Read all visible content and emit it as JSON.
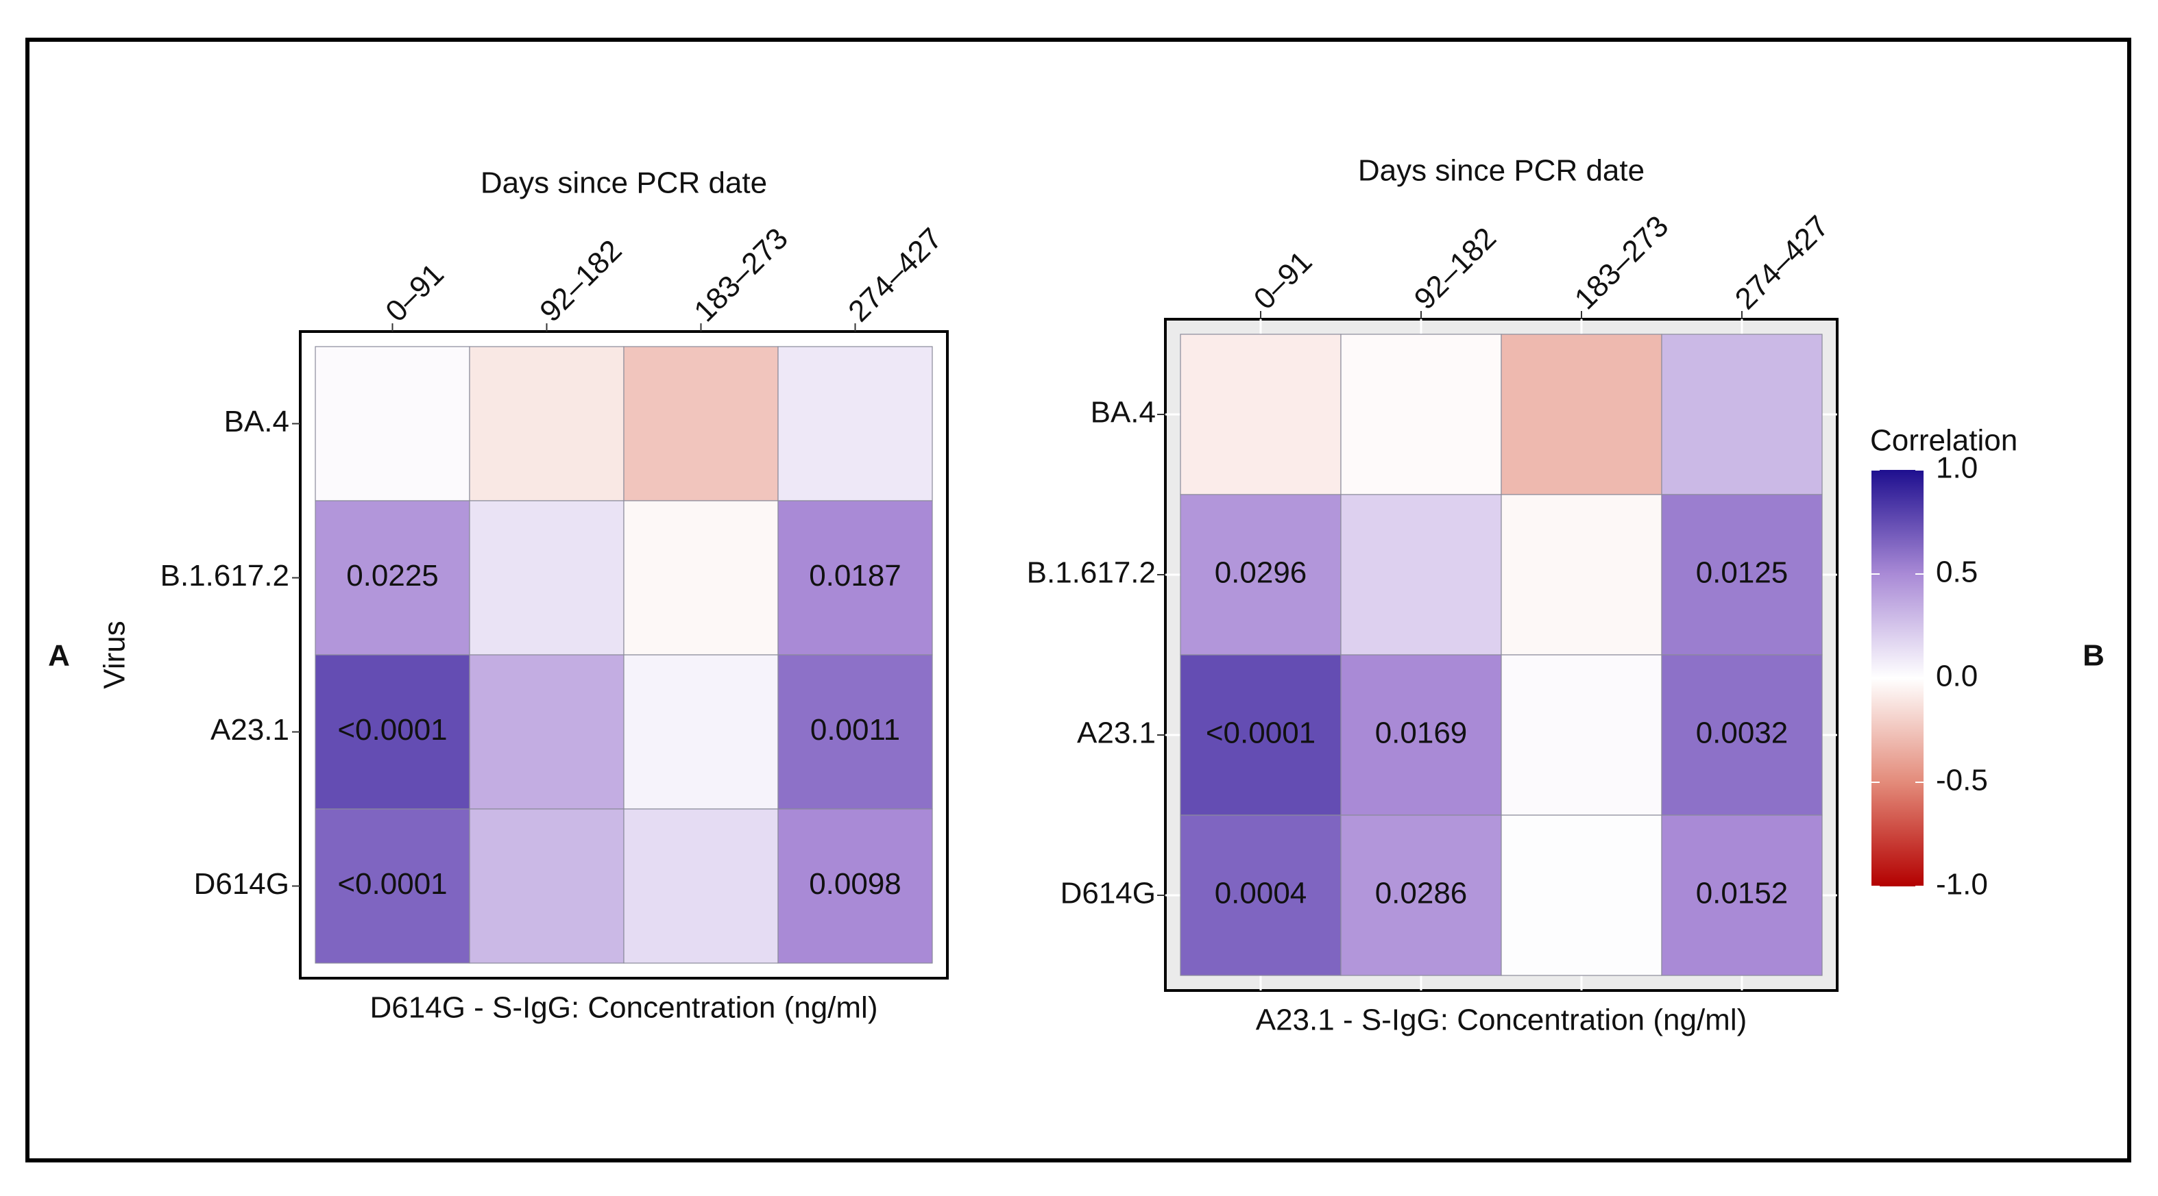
{
  "chart_data": [
    {
      "type": "heatmap",
      "panel_label": "A",
      "title": "Days since PCR date",
      "x_label": "D614G - S-IgG: Concentration (ng/ml)",
      "y_label": "Virus",
      "panel_color": "#ffffff",
      "x_categories": [
        "0–91",
        "92–182",
        "183–273",
        "274–427"
      ],
      "y_categories": [
        "BA.4",
        "B.1.617.2",
        "A23.1",
        "D614G"
      ],
      "values": [
        [
          0.02,
          -0.1,
          -0.25,
          0.1
        ],
        [
          0.45,
          0.12,
          -0.03,
          0.5
        ],
        [
          0.75,
          0.35,
          0.05,
          0.6
        ],
        [
          0.65,
          0.3,
          0.15,
          0.5
        ]
      ],
      "cell_labels": [
        [
          null,
          null,
          null,
          null
        ],
        [
          "0.0225",
          null,
          null,
          "0.0187"
        ],
        [
          "<0.0001",
          null,
          null,
          "0.0011"
        ],
        [
          "<0.0001",
          null,
          null,
          "0.0098"
        ]
      ]
    },
    {
      "type": "heatmap",
      "panel_label": "B",
      "title": "Days since PCR date",
      "x_label": "A23.1 - S-IgG: Concentration (ng/ml)",
      "panel_color": "#ebebeb",
      "x_categories": [
        "0–91",
        "92–182",
        "183–273",
        "274–427"
      ],
      "y_categories": [
        "BA.4",
        "B.1.617.2",
        "A23.1",
        "D614G"
      ],
      "values": [
        [
          -0.08,
          -0.02,
          -0.3,
          0.3
        ],
        [
          0.45,
          0.2,
          -0.03,
          0.55
        ],
        [
          0.75,
          0.5,
          0.02,
          0.6
        ],
        [
          0.65,
          0.45,
          0.01,
          0.5
        ]
      ],
      "cell_labels": [
        [
          null,
          null,
          null,
          null
        ],
        [
          "0.0296",
          null,
          null,
          "0.0125"
        ],
        [
          "<0.0001",
          "0.0169",
          null,
          "0.0032"
        ],
        [
          "0.0004",
          "0.0286",
          null,
          "0.0152"
        ]
      ]
    }
  ],
  "colorbar": {
    "title": "Correlation",
    "clim": [
      -1,
      1
    ],
    "colors": [
      "#b30000",
      "#e38b7a",
      "#ffffff",
      "#a98ad6",
      "#1e0f8f"
    ],
    "ticks": [
      {
        "value": 1,
        "label": "1.0"
      },
      {
        "value": 0.5,
        "label": "0.5"
      },
      {
        "value": 0,
        "label": "0.0"
      },
      {
        "value": -0.5,
        "label": "-0.5"
      },
      {
        "value": -1,
        "label": "-1.0"
      }
    ]
  }
}
